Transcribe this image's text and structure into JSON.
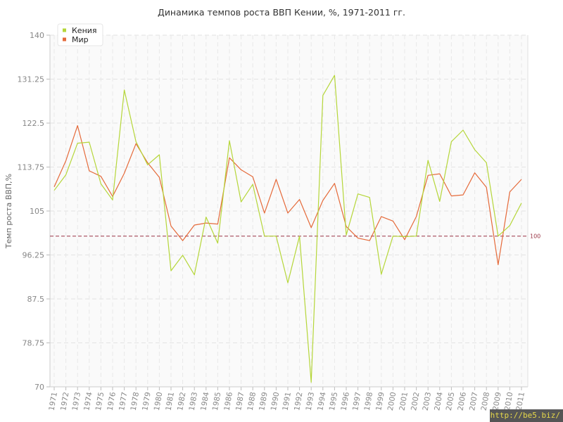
{
  "chart_data": {
    "type": "line",
    "title": "Динамика темпов роста ВВП Кении, %, 1971-2011 гг.",
    "ylabel": "Темп роста ВВП,%",
    "xlabel": "",
    "ylim": [
      70,
      140
    ],
    "yticks": [
      "70",
      "78.75",
      "87.5",
      "96.25",
      "105",
      "113.75",
      "122.5",
      "131.25",
      "140"
    ],
    "grid": true,
    "legend_position": "top-left",
    "reference_line": {
      "value": 100,
      "label": "100",
      "color": "#993344"
    },
    "x": [
      "1971",
      "1972",
      "1973",
      "1974",
      "1975",
      "1976",
      "1977",
      "1978",
      "1979",
      "1980",
      "1981",
      "1982",
      "1983",
      "1984",
      "1985",
      "1986",
      "1987",
      "1988",
      "1989",
      "1990",
      "1991",
      "1992",
      "1993",
      "1994",
      "1995",
      "1996",
      "1997",
      "1998",
      "1999",
      "2000",
      "2001",
      "2002",
      "2003",
      "2004",
      "2005",
      "2006",
      "2007",
      "2008",
      "2009",
      "2010",
      "2011"
    ],
    "series": [
      {
        "name": "Кения",
        "color": "#b5d639",
        "values": [
          109.1,
          112.2,
          118.5,
          118.7,
          110.4,
          107.2,
          129.1,
          118.8,
          114.2,
          116.2,
          93.1,
          96.2,
          92.3,
          103.8,
          98.6,
          119.0,
          106.8,
          110.3,
          100.0,
          100.0,
          90.7,
          100.0,
          70.9,
          128.0,
          132.0,
          100.2,
          108.4,
          107.7,
          92.4,
          100.0,
          99.9,
          100.0,
          115.1,
          106.9,
          118.8,
          121.1,
          117.2,
          114.6,
          100.0,
          102.1,
          106.6
        ]
      },
      {
        "name": "Мир",
        "color": "#e56a3a",
        "values": [
          109.8,
          115.0,
          122.0,
          113.0,
          111.9,
          107.9,
          112.5,
          118.4,
          114.6,
          111.7,
          102.0,
          99.1,
          102.2,
          102.6,
          102.4,
          115.6,
          113.2,
          111.8,
          104.6,
          111.3,
          104.6,
          107.3,
          101.7,
          107.1,
          110.5,
          101.9,
          99.6,
          99.1,
          103.9,
          103.0,
          99.3,
          103.9,
          112.1,
          112.4,
          108.0,
          108.2,
          112.6,
          109.7,
          94.3,
          108.8,
          111.3
        ]
      }
    ]
  },
  "watermark": "http://be5.biz/"
}
